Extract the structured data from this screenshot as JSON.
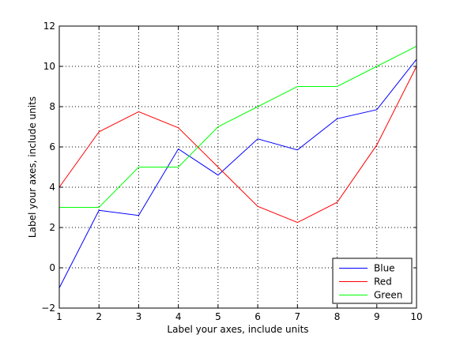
{
  "chart_data": {
    "type": "line",
    "title": "",
    "xlabel": "Label your axes, include units",
    "ylabel": "Label your axes, include units",
    "xlim": [
      1,
      10
    ],
    "ylim": [
      -2,
      12
    ],
    "xticks": [
      1,
      2,
      3,
      4,
      5,
      6,
      7,
      8,
      9,
      10
    ],
    "yticks": [
      -2,
      0,
      2,
      4,
      6,
      8,
      10,
      12
    ],
    "grid": true,
    "legend_position": "bottom-right",
    "x": [
      1,
      2,
      3,
      4,
      5,
      6,
      7,
      8,
      9,
      10
    ],
    "series": [
      {
        "name": "Blue",
        "color": "#0000ff",
        "values": [
          -1.0,
          2.85,
          2.6,
          5.9,
          4.6,
          6.4,
          5.85,
          7.4,
          7.85,
          10.35
        ]
      },
      {
        "name": "Red",
        "color": "#ff0000",
        "values": [
          4.0,
          6.75,
          7.75,
          6.95,
          5.0,
          3.05,
          2.25,
          3.25,
          6.1,
          10.0
        ]
      },
      {
        "name": "Green",
        "color": "#00ff00",
        "values": [
          3.0,
          3.0,
          5.0,
          5.0,
          7.0,
          8.0,
          9.0,
          9.0,
          10.0,
          11.0
        ]
      }
    ]
  }
}
